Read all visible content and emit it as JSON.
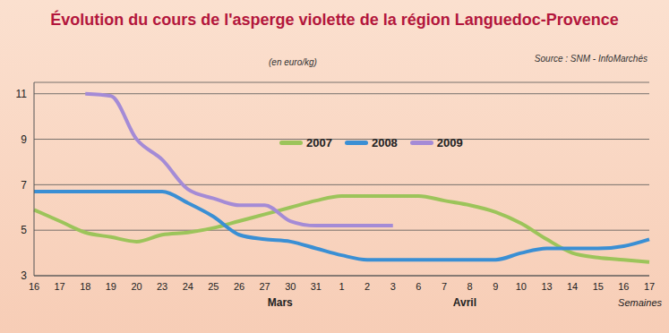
{
  "chart_data": {
    "type": "line",
    "title": "Évolution du cours de l'asperge violette de la région Languedoc-Provence",
    "ylabel": "(en euro/kg)",
    "xlabel": "Semaines",
    "source": "Source : SNM - InfoMarchés",
    "months": [
      "Mars",
      "Avril"
    ],
    "categories": [
      "16",
      "17",
      "18",
      "19",
      "20",
      "23",
      "24",
      "25",
      "26",
      "27",
      "30",
      "31",
      "1",
      "2",
      "3",
      "6",
      "7",
      "8",
      "9",
      "10",
      "13",
      "14",
      "15",
      "16",
      "17"
    ],
    "series": [
      {
        "name": "2007",
        "color": "#9cc45a",
        "values": [
          5.9,
          5.4,
          4.9,
          4.7,
          4.5,
          4.8,
          4.9,
          5.1,
          5.4,
          5.7,
          6.0,
          6.3,
          6.5,
          6.5,
          6.5,
          6.5,
          6.3,
          6.1,
          5.8,
          5.3,
          4.6,
          4.0,
          3.8,
          3.7,
          3.6
        ]
      },
      {
        "name": "2008",
        "color": "#3a8fd4",
        "values": [
          6.7,
          6.7,
          6.7,
          6.7,
          6.7,
          6.7,
          6.2,
          5.6,
          4.8,
          4.6,
          4.5,
          4.2,
          3.9,
          3.7,
          3.7,
          3.7,
          3.7,
          3.7,
          3.7,
          4.0,
          4.2,
          4.2,
          4.2,
          4.3,
          4.6
        ]
      },
      {
        "name": "2009",
        "color": "#a48bd6",
        "values": [
          null,
          null,
          11.0,
          10.9,
          9.0,
          8.1,
          6.8,
          6.4,
          6.1,
          6.1,
          5.4,
          5.2,
          5.2,
          5.2,
          5.2,
          null,
          null,
          null,
          null,
          null,
          null,
          null,
          null,
          null,
          null
        ]
      }
    ],
    "ylim": [
      3,
      11.5
    ],
    "yticks": [
      3,
      5,
      7,
      9,
      11
    ],
    "grid": true
  }
}
